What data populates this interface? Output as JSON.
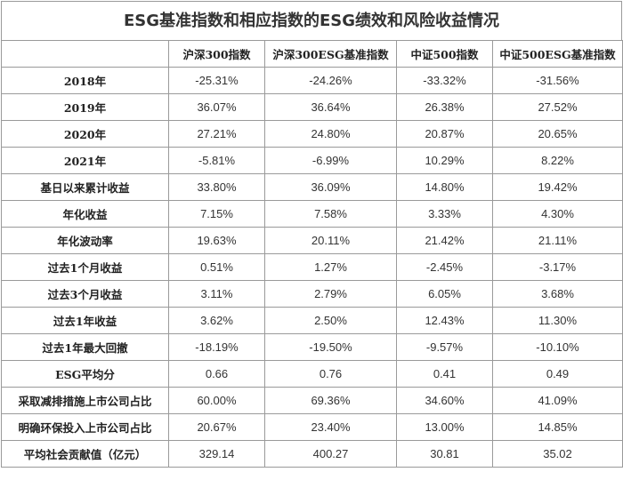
{
  "title": "ESG基准指数和相应指数的ESG绩效和风险收益情况",
  "columns": [
    "",
    "沪深300指数",
    "沪深300ESG基准指数",
    "中证500指数",
    "中证500ESG基准指数"
  ],
  "rows": [
    {
      "label": "2018年",
      "values": [
        "-25.31%",
        "-24.26%",
        "-33.32%",
        "-31.56%"
      ]
    },
    {
      "label": "2019年",
      "values": [
        "36.07%",
        "36.64%",
        "26.38%",
        "27.52%"
      ]
    },
    {
      "label": "2020年",
      "values": [
        "27.21%",
        "24.80%",
        "20.87%",
        "20.65%"
      ]
    },
    {
      "label": "2021年",
      "values": [
        "-5.81%",
        "-6.99%",
        "10.29%",
        "8.22%"
      ]
    },
    {
      "label": "基日以来累计收益",
      "values": [
        "33.80%",
        "36.09%",
        "14.80%",
        "19.42%"
      ]
    },
    {
      "label": "年化收益",
      "values": [
        "7.15%",
        "7.58%",
        "3.33%",
        "4.30%"
      ]
    },
    {
      "label": "年化波动率",
      "values": [
        "19.63%",
        "20.11%",
        "21.42%",
        "21.11%"
      ]
    },
    {
      "label": "过去1个月收益",
      "values": [
        "0.51%",
        "1.27%",
        "-2.45%",
        "-3.17%"
      ]
    },
    {
      "label": "过去3个月收益",
      "values": [
        "3.11%",
        "2.79%",
        "6.05%",
        "3.68%"
      ]
    },
    {
      "label": "过去1年收益",
      "values": [
        "3.62%",
        "2.50%",
        "12.43%",
        "11.30%"
      ]
    },
    {
      "label": "过去1年最大回撤",
      "values": [
        "-18.19%",
        "-19.50%",
        "-9.57%",
        "-10.10%"
      ]
    },
    {
      "label": "ESG平均分",
      "values": [
        "0.66",
        "0.76",
        "0.41",
        "0.49"
      ]
    },
    {
      "label": "采取减排措施上市公司占比",
      "values": [
        "60.00%",
        "69.36%",
        "34.60%",
        "41.09%"
      ]
    },
    {
      "label": "明确环保投入上市公司占比",
      "values": [
        "20.67%",
        "23.40%",
        "13.00%",
        "14.85%"
      ]
    },
    {
      "label": "平均社会贡献值（亿元）",
      "values": [
        "329.14",
        "400.27",
        "30.81",
        "35.02"
      ]
    }
  ]
}
